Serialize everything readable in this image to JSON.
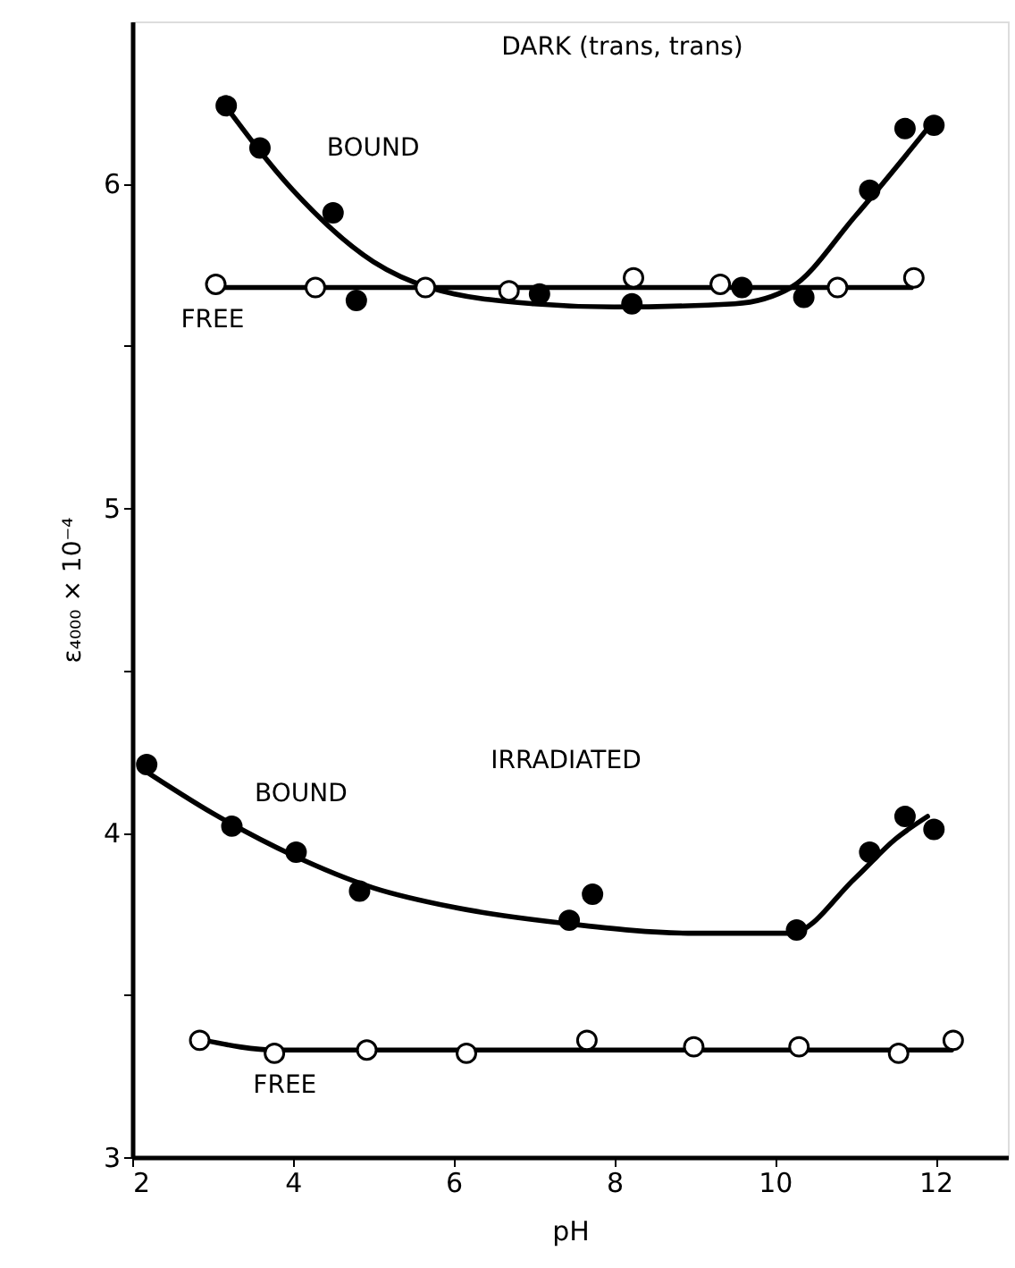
{
  "chart_data": {
    "type": "scatter",
    "xlabel": "pH",
    "ylabel": "ε₄₀₀₀ × 10⁻⁴",
    "xlim": [
      2,
      12.9
    ],
    "xticks": [
      2,
      4,
      6,
      8,
      10,
      12
    ],
    "ylim": [
      3,
      6.5
    ],
    "yticks": [
      3,
      {
        "value": 3.5,
        "label": null
      },
      4,
      {
        "value": 4.5,
        "label": null
      },
      5,
      {
        "value": 5.5,
        "label": null
      },
      6
    ],
    "grid": false,
    "series": [
      {
        "type": "line",
        "marker": "none",
        "line_style": "solid",
        "color": "#000000",
        "x": [
          3.1,
          4,
          5,
          5.7,
          7,
          8,
          9.5,
          10.2,
          11,
          12
        ],
        "values": [
          6.26,
          5.98,
          5.76,
          5.68,
          5.63,
          5.62,
          5.63,
          5.68,
          5.9,
          6.2
        ]
      },
      {
        "type": "line",
        "marker": "none",
        "line_style": "solid",
        "color": "#000000",
        "x": [
          3.0,
          11.7
        ],
        "values": [
          5.68,
          5.68
        ]
      },
      {
        "type": "line",
        "marker": "none",
        "line_style": "solid",
        "color": "#000000",
        "x": [
          2.1,
          3,
          4,
          5,
          6,
          7.4,
          9,
          10.2,
          11,
          11.5,
          11.9
        ],
        "values": [
          4.2,
          4.06,
          3.93,
          3.83,
          3.77,
          3.72,
          3.69,
          3.69,
          3.86,
          3.98,
          4.05
        ]
      },
      {
        "type": "line",
        "marker": "none",
        "line_style": "solid",
        "color": "#000000",
        "x": [
          2.9,
          3.8,
          12.2
        ],
        "values": [
          3.36,
          3.33,
          3.33
        ]
      },
      {
        "marker": "circle",
        "color": "#000000",
        "x": [
          3.17,
          3.59,
          4.5,
          4.79,
          7.07,
          8.22,
          9.59,
          10.36,
          11.18,
          11.62,
          11.98
        ],
        "values": [
          6.24,
          6.11,
          5.91,
          5.64,
          5.66,
          5.63,
          5.68,
          5.65,
          5.98,
          6.17,
          6.18
        ]
      },
      {
        "marker": "circle",
        "color": "#ffffff",
        "x": [
          3.04,
          4.28,
          5.65,
          6.69,
          8.24,
          9.32,
          10.78,
          11.73
        ],
        "values": [
          5.69,
          5.68,
          5.68,
          5.67,
          5.71,
          5.69,
          5.68,
          5.71
        ]
      },
      {
        "marker": "circle",
        "color": "#000000",
        "x": [
          2.18,
          3.24,
          4.04,
          4.83,
          7.44,
          7.73,
          10.27,
          11.18,
          11.62,
          11.98
        ],
        "values": [
          4.21,
          4.02,
          3.94,
          3.82,
          3.73,
          3.81,
          3.7,
          3.94,
          4.05,
          4.01
        ]
      },
      {
        "marker": "circle",
        "color": "#ffffff",
        "x": [
          2.84,
          3.77,
          4.92,
          6.16,
          7.66,
          8.99,
          10.3,
          11.54,
          12.22
        ],
        "values": [
          3.36,
          3.32,
          3.33,
          3.32,
          3.36,
          3.34,
          3.34,
          3.32,
          3.36
        ]
      }
    ],
    "annotations": [
      "DARK (trans, trans)",
      "BOUND",
      "FREE",
      "IRRADIATED",
      "BOUND",
      "FREE"
    ]
  }
}
